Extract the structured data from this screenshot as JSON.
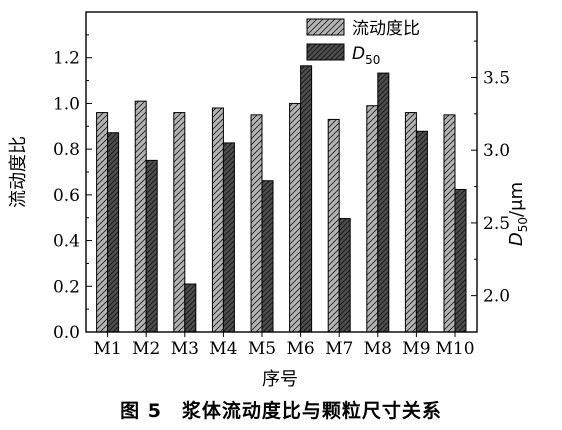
{
  "chart_data": {
    "type": "bar",
    "categories": [
      "M1",
      "M2",
      "M3",
      "M4",
      "M5",
      "M6",
      "M7",
      "M8",
      "M9",
      "M10"
    ],
    "series": [
      {
        "name": "流动度比",
        "axis": "left",
        "values": [
          0.96,
          1.01,
          0.96,
          0.98,
          0.95,
          1.0,
          0.93,
          0.99,
          0.96,
          0.95
        ]
      },
      {
        "name": "D50",
        "axis": "right",
        "values": [
          3.12,
          2.93,
          2.08,
          3.05,
          2.79,
          3.58,
          2.53,
          3.53,
          3.13,
          2.73
        ]
      }
    ],
    "xlabel": "序号",
    "ylabel_left": "流动度比",
    "ylabel_right": "D50/μm",
    "ylim_left": [
      0.0,
      1.4
    ],
    "yticks_left": [
      "0.0",
      "0.2",
      "0.4",
      "0.6",
      "0.8",
      "1.0",
      "1.2"
    ],
    "ylim_right": [
      1.75,
      3.95
    ],
    "yticks_right": [
      "2.0",
      "2.5",
      "3.0",
      "3.5"
    ],
    "legend_position": "top-right",
    "colors": {
      "series1_fill": "#b4b4b4",
      "series2_fill": "#505050",
      "hatch": "#222222"
    }
  },
  "caption": "图 5　浆体流动度比与颗粒尺寸关系"
}
